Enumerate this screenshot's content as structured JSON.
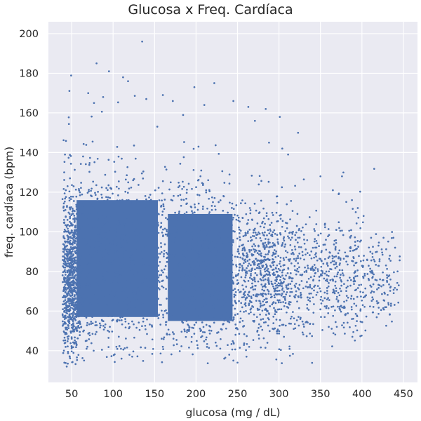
{
  "chart_data": {
    "type": "scatter",
    "title": "Glucosa x Freq. Cardíaca",
    "xlabel": "glucosa (mg / dL)",
    "ylabel": "freq. cardíaca (bpm)",
    "xlim": [
      22,
      467
    ],
    "ylim": [
      24,
      206
    ],
    "x_ticks": [
      50,
      100,
      150,
      200,
      250,
      300,
      350,
      400,
      450
    ],
    "y_ticks": [
      40,
      60,
      80,
      100,
      120,
      140,
      160,
      180,
      200
    ],
    "grid": true,
    "legend": "none",
    "colors": {
      "points": "#4c72b0",
      "plot_bg": "#eaeaf2",
      "grid": "#ffffff"
    },
    "series": [
      {
        "density_regions": [
          {
            "x_range": [
              40,
              60
            ],
            "y_range": [
              48,
              105
            ],
            "level": 0.85
          },
          {
            "x_range": [
              50,
              160
            ],
            "y_range": [
              52,
              122
            ],
            "level": 1.0
          },
          {
            "x_range": [
              160,
              250
            ],
            "y_range": [
              50,
              115
            ],
            "level": 0.95
          },
          {
            "x_range": [
              250,
              320
            ],
            "y_range": [
              52,
              108
            ],
            "level": 0.7
          },
          {
            "x_range": [
              320,
              400
            ],
            "y_range": [
              55,
              100
            ],
            "level": 0.35
          },
          {
            "x_range": [
              400,
              445
            ],
            "y_range": [
              60,
              90
            ],
            "level": 0.1
          }
        ],
        "points": [
          [
            135,
            196
          ],
          [
            80,
            185
          ],
          [
            95,
            181
          ],
          [
            112,
            178
          ],
          [
            118,
            176
          ],
          [
            222,
            175
          ],
          [
            198,
            173
          ],
          [
            70,
            170
          ],
          [
            88,
            168
          ],
          [
            160,
            169
          ],
          [
            77,
            165
          ],
          [
            140,
            167
          ],
          [
            172,
            166
          ],
          [
            245,
            166
          ],
          [
            210,
            164
          ],
          [
            263,
            163
          ],
          [
            284,
            162
          ],
          [
            301,
            158
          ],
          [
            271,
            156
          ],
          [
            323,
            150
          ],
          [
            288,
            145
          ],
          [
            304,
            142
          ],
          [
            311,
            139
          ],
          [
            350,
            128
          ],
          [
            376,
            128
          ],
          [
            365,
            121
          ],
          [
            388,
            116
          ],
          [
            372,
            119
          ],
          [
            395,
            112
          ],
          [
            402,
            108
          ],
          [
            420,
            93
          ],
          [
            440,
            92
          ],
          [
            443,
            80
          ],
          [
            433,
            78
          ],
          [
            412,
            70
          ],
          [
            405,
            68
          ],
          [
            401,
            63
          ],
          [
            418,
            65
          ],
          [
            428,
            62
          ],
          [
            380,
            58
          ],
          [
            388,
            56
          ],
          [
            360,
            52
          ],
          [
            306,
            47
          ],
          [
            298,
            50
          ],
          [
            286,
            44
          ],
          [
            240,
            38
          ],
          [
            245,
            35
          ],
          [
            250,
            34
          ],
          [
            234,
            36
          ],
          [
            123,
            37
          ],
          [
            68,
            41
          ],
          [
            104,
            42
          ],
          [
            160,
            42
          ],
          [
            45,
            47
          ],
          [
            41,
            100
          ],
          [
            41,
            130
          ],
          [
            42,
            139
          ],
          [
            43,
            121
          ],
          [
            45,
            106
          ],
          [
            48,
            127
          ]
        ]
      }
    ]
  }
}
